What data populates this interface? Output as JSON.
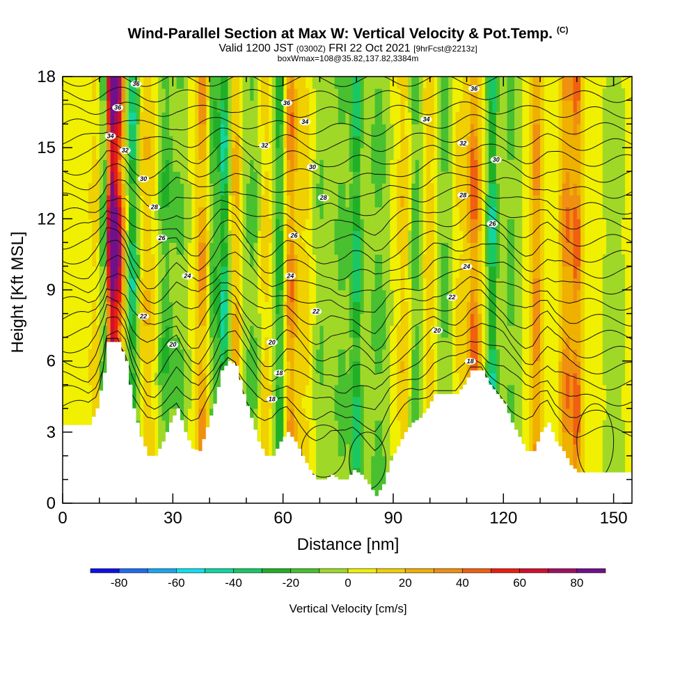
{
  "header": {
    "title": "Wind-Parallel Section at Max W: Vertical Velocity & Pot.Temp.",
    "title_tag": "(C)",
    "valid_prefix": "Valid 1200 JST",
    "valid_utc": "(0300Z)",
    "valid_date": "FRI 22 Oct 2021",
    "forecast": "[9hrFcst@2213z]",
    "box_info": "boxWmax=108@35.82,137.82,3384m"
  },
  "chart_data": {
    "type": "heatmap",
    "xlabel": "Distance [nm]",
    "ylabel": "Height [Kft MSL]",
    "xlim": [
      0,
      155
    ],
    "ylim": [
      0,
      18
    ],
    "xticks": [
      0,
      30,
      60,
      90,
      120,
      150
    ],
    "xtick_labels": [
      "0",
      "30",
      "60",
      "90",
      "120",
      "150"
    ],
    "yticks": [
      0,
      3,
      6,
      9,
      12,
      15,
      18
    ],
    "ytick_labels": [
      "0",
      "3",
      "6",
      "9",
      "12",
      "15",
      "18"
    ],
    "colorbar": {
      "title": "Vertical Velocity [cm/s]",
      "bounds": [
        -90,
        -80,
        -70,
        -60,
        -50,
        -40,
        -30,
        -20,
        -10,
        0,
        10,
        20,
        30,
        40,
        50,
        60,
        70,
        80,
        90
      ],
      "colors": [
        "#1010e8",
        "#1f6cf0",
        "#1aa6f0",
        "#10e0f0",
        "#12d6a0",
        "#18c864",
        "#20b028",
        "#48c030",
        "#a0d828",
        "#f0f000",
        "#f0d000",
        "#f0b000",
        "#f09010",
        "#f06010",
        "#e82010",
        "#d0102c",
        "#a01060",
        "#70108c"
      ],
      "tick_values": [
        -80,
        -60,
        -40,
        -20,
        0,
        20,
        40,
        60,
        80
      ],
      "tick_labels": [
        "-80",
        "-60",
        "-40",
        "-20",
        "0",
        "20",
        "40",
        "60",
        "80"
      ]
    },
    "vertical_velocity_bands": [
      {
        "x": 13,
        "width": 1.4,
        "w": 95
      },
      {
        "x": 15,
        "width": 1.8,
        "w": 75
      },
      {
        "x": 11.5,
        "width": 1.2,
        "w": -55
      },
      {
        "x": 19,
        "width": 1.5,
        "w": -50
      },
      {
        "x": 9,
        "width": 2.0,
        "w": 15
      },
      {
        "x": 23,
        "width": 2.5,
        "w": 20
      },
      {
        "x": 28,
        "width": 2.2,
        "w": -25
      },
      {
        "x": 32,
        "width": 2.0,
        "w": -15
      },
      {
        "x": 38,
        "width": 1.8,
        "w": 35
      },
      {
        "x": 41,
        "width": 1.6,
        "w": -25
      },
      {
        "x": 44,
        "width": 1.4,
        "w": -50
      },
      {
        "x": 47,
        "width": 1.6,
        "w": 25
      },
      {
        "x": 52,
        "width": 2.5,
        "w": -20
      },
      {
        "x": 55,
        "width": 2.0,
        "w": 20
      },
      {
        "x": 59,
        "width": 1.6,
        "w": -35
      },
      {
        "x": 62,
        "width": 1.8,
        "w": 40
      },
      {
        "x": 66,
        "width": 2.5,
        "w": 15
      },
      {
        "x": 70,
        "width": 2.0,
        "w": -15
      },
      {
        "x": 76,
        "width": 2.2,
        "w": -20
      },
      {
        "x": 80,
        "width": 1.5,
        "w": -45
      },
      {
        "x": 86,
        "width": 2.5,
        "w": -20
      },
      {
        "x": 93,
        "width": 2.0,
        "w": 20
      },
      {
        "x": 96,
        "width": 1.8,
        "w": -25
      },
      {
        "x": 100,
        "width": 2.0,
        "w": 20
      },
      {
        "x": 104,
        "width": 2.5,
        "w": -20
      },
      {
        "x": 108,
        "width": 2.0,
        "w": 15
      },
      {
        "x": 112,
        "width": 1.8,
        "w": 50
      },
      {
        "x": 117,
        "width": 1.4,
        "w": -50
      },
      {
        "x": 122,
        "width": 2.0,
        "w": -20
      },
      {
        "x": 129,
        "width": 1.6,
        "w": 40
      },
      {
        "x": 137,
        "width": 1.8,
        "w": 40
      },
      {
        "x": 140,
        "width": 1.5,
        "w": 45
      },
      {
        "x": 150,
        "width": 2.5,
        "w": -10
      }
    ],
    "terrain": [
      [
        0,
        3.3
      ],
      [
        7,
        3.3
      ],
      [
        9,
        4.0
      ],
      [
        11,
        5.5
      ],
      [
        12,
        6.8
      ],
      [
        15,
        6.8
      ],
      [
        17,
        6.0
      ],
      [
        19,
        4.0
      ],
      [
        21,
        2.8
      ],
      [
        23,
        2.0
      ],
      [
        25,
        2.0
      ],
      [
        27,
        2.6
      ],
      [
        29,
        3.4
      ],
      [
        31,
        4.0
      ],
      [
        33,
        3.0
      ],
      [
        35,
        2.3
      ],
      [
        37,
        2.2
      ],
      [
        39,
        3.2
      ],
      [
        41,
        4.2
      ],
      [
        43,
        5.6
      ],
      [
        45,
        6.0
      ],
      [
        47,
        5.8
      ],
      [
        49,
        4.6
      ],
      [
        51,
        3.6
      ],
      [
        53,
        2.6
      ],
      [
        55,
        2.0
      ],
      [
        57,
        2.0
      ],
      [
        59,
        2.6
      ],
      [
        61,
        3.0
      ],
      [
        63,
        2.6
      ],
      [
        65,
        2.0
      ],
      [
        67,
        1.4
      ],
      [
        69,
        1.0
      ],
      [
        71,
        1.0
      ],
      [
        73,
        1.2
      ],
      [
        75,
        1.0
      ],
      [
        77,
        1.0
      ],
      [
        79,
        1.4
      ],
      [
        81,
        1.2
      ],
      [
        83,
        0.8
      ],
      [
        85,
        0.3
      ],
      [
        87,
        0.8
      ],
      [
        89,
        1.8
      ],
      [
        91,
        2.4
      ],
      [
        93,
        3.0
      ],
      [
        95,
        3.4
      ],
      [
        97,
        3.6
      ],
      [
        99,
        4.0
      ],
      [
        101,
        4.6
      ],
      [
        103,
        4.6
      ],
      [
        105,
        4.6
      ],
      [
        107,
        4.6
      ],
      [
        109,
        5.0
      ],
      [
        111,
        5.6
      ],
      [
        114,
        5.6
      ],
      [
        116,
        5.0
      ],
      [
        118,
        4.6
      ],
      [
        120,
        4.2
      ],
      [
        122,
        3.4
      ],
      [
        124,
        2.8
      ],
      [
        126,
        2.2
      ],
      [
        128,
        2.2
      ],
      [
        130,
        3.0
      ],
      [
        132,
        3.4
      ],
      [
        134,
        2.6
      ],
      [
        136,
        2.2
      ],
      [
        138,
        1.6
      ],
      [
        140,
        1.3
      ],
      [
        143,
        1.3
      ],
      [
        146,
        1.3
      ],
      [
        155,
        1.3
      ]
    ],
    "theta_labels": [
      {
        "text": "36",
        "x": 20,
        "y": 17.6
      },
      {
        "text": "36",
        "x": 15,
        "y": 16.6
      },
      {
        "text": "34",
        "x": 13,
        "y": 15.4
      },
      {
        "text": "32",
        "x": 17,
        "y": 14.8
      },
      {
        "text": "30",
        "x": 22,
        "y": 13.6
      },
      {
        "text": "28",
        "x": 25,
        "y": 12.4
      },
      {
        "text": "26",
        "x": 27,
        "y": 11.1
      },
      {
        "text": "24",
        "x": 34,
        "y": 9.5
      },
      {
        "text": "22",
        "x": 22,
        "y": 7.8
      },
      {
        "text": "20",
        "x": 30,
        "y": 6.6
      },
      {
        "text": "36",
        "x": 61,
        "y": 16.8
      },
      {
        "text": "34",
        "x": 66,
        "y": 16.0
      },
      {
        "text": "32",
        "x": 55,
        "y": 15.0
      },
      {
        "text": "30",
        "x": 68,
        "y": 14.1
      },
      {
        "text": "28",
        "x": 71,
        "y": 12.8
      },
      {
        "text": "26",
        "x": 63,
        "y": 11.2
      },
      {
        "text": "24",
        "x": 62,
        "y": 9.5
      },
      {
        "text": "22",
        "x": 69,
        "y": 8.0
      },
      {
        "text": "20",
        "x": 57,
        "y": 6.7
      },
      {
        "text": "18",
        "x": 59,
        "y": 5.4
      },
      {
        "text": "18",
        "x": 57,
        "y": 4.3
      },
      {
        "text": "36",
        "x": 112,
        "y": 17.4
      },
      {
        "text": "34",
        "x": 99,
        "y": 16.1
      },
      {
        "text": "32",
        "x": 109,
        "y": 15.1
      },
      {
        "text": "30",
        "x": 118,
        "y": 14.4
      },
      {
        "text": "28",
        "x": 109,
        "y": 12.9
      },
      {
        "text": "26",
        "x": 117,
        "y": 11.7
      },
      {
        "text": "24",
        "x": 110,
        "y": 9.9
      },
      {
        "text": "22",
        "x": 106,
        "y": 8.6
      },
      {
        "text": "20",
        "x": 102,
        "y": 7.2
      },
      {
        "text": "18",
        "x": 111,
        "y": 5.9
      }
    ]
  }
}
